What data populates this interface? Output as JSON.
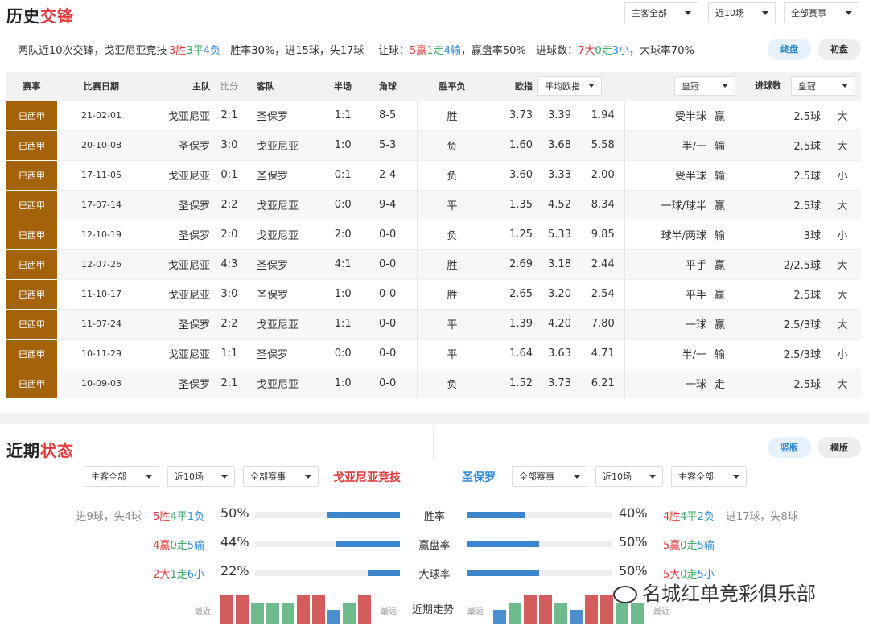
{
  "h2h": {
    "title_a": "历史",
    "title_b": "交锋",
    "filters": [
      "主客全部",
      "近10场",
      "全部赛事"
    ],
    "summary": {
      "prefix": "两队近10次交锋，戈亚尼亚竞技",
      "w": "3胜",
      "d": "3平",
      "l": "4负",
      "rate": "胜率30%，进15球，失17球",
      "hc_label": "让球：",
      "hc_w": "5赢",
      "hc_d": "1走",
      "hc_l": "4输",
      "hc_rate": "，赢盘率50%",
      "ou_label": "进球数：",
      "ou_o": "7大",
      "ou_d": "0走",
      "ou_u": "3小",
      "ou_rate": "，大球率70%"
    },
    "btn_final": "终盘",
    "btn_initial": "初盘",
    "headers": {
      "league": "赛事",
      "date": "比赛日期",
      "home": "主队",
      "score": "比分",
      "away": "客队",
      "half": "半场",
      "corner": "角球",
      "result": "胜平负",
      "odds": "欧指",
      "odds_select": "平均欧指",
      "hc": "让球",
      "hc_select": "皇冠",
      "goals": "进球数",
      "goals_select": "皇冠"
    },
    "rows": [
      {
        "league": "巴西甲",
        "date": "21-02-01",
        "home": "戈亚尼亚",
        "home_c": "red",
        "score": "2:1",
        "away": "圣保罗",
        "away_c": "",
        "half": "1:1",
        "corner": "8-5",
        "res": "胜",
        "res_c": "red",
        "o1": "3.73",
        "o2": "3.39",
        "o3": "1.94",
        "hc": "受半球",
        "hcr": "赢",
        "hcr_c": "red",
        "goals": "2.5球",
        "ou": "大",
        "ou_c": "red"
      },
      {
        "league": "巴西甲",
        "date": "20-10-08",
        "home": "圣保罗",
        "home_c": "",
        "score": "3:0",
        "away": "戈亚尼亚",
        "away_c": "blue",
        "half": "1:0",
        "corner": "5-3",
        "res": "负",
        "res_c": "blue",
        "o1": "1.60",
        "o2": "3.68",
        "o3": "5.58",
        "hc": "半/一",
        "hcr": "输",
        "hcr_c": "blue",
        "goals": "2.5球",
        "ou": "大",
        "ou_c": "red"
      },
      {
        "league": "巴西甲",
        "date": "17-11-05",
        "home": "戈亚尼亚",
        "home_c": "blue",
        "score": "0:1",
        "away": "圣保罗",
        "away_c": "",
        "half": "0:1",
        "corner": "2-4",
        "res": "负",
        "res_c": "blue",
        "o1": "3.60",
        "o2": "3.33",
        "o3": "2.00",
        "hc": "受半球",
        "hcr": "输",
        "hcr_c": "blue",
        "goals": "2.5球",
        "ou": "小",
        "ou_c": "blue"
      },
      {
        "league": "巴西甲",
        "date": "17-07-14",
        "home": "圣保罗",
        "home_c": "",
        "score": "2:2",
        "away": "戈亚尼亚",
        "away_c": "green",
        "half": "0:0",
        "corner": "9-4",
        "res": "平",
        "res_c": "green",
        "o1": "1.35",
        "o2": "4.52",
        "o3": "8.34",
        "hc": "一球/球半",
        "hcr": "赢",
        "hcr_c": "red",
        "goals": "2.5球",
        "ou": "大",
        "ou_c": "red"
      },
      {
        "league": "巴西甲",
        "date": "12-10-19",
        "home": "圣保罗",
        "home_c": "",
        "score": "2:0",
        "away": "戈亚尼亚",
        "away_c": "blue",
        "half": "2:0",
        "corner": "0-0",
        "res": "负",
        "res_c": "blue",
        "o1": "1.25",
        "o2": "5.33",
        "o3": "9.85",
        "hc": "球半/两球",
        "hcr": "输",
        "hcr_c": "blue",
        "goals": "3球",
        "ou": "小",
        "ou_c": "blue"
      },
      {
        "league": "巴西甲",
        "date": "12-07-26",
        "home": "戈亚尼亚",
        "home_c": "red",
        "score": "4:3",
        "away": "圣保罗",
        "away_c": "",
        "half": "4:1",
        "corner": "0-0",
        "res": "胜",
        "res_c": "red",
        "o1": "2.69",
        "o2": "3.18",
        "o3": "2.44",
        "hc": "平手",
        "hcr": "赢",
        "hcr_c": "red",
        "goals": "2/2.5球",
        "ou": "大",
        "ou_c": "red"
      },
      {
        "league": "巴西甲",
        "date": "11-10-17",
        "home": "戈亚尼亚",
        "home_c": "red",
        "score": "3:0",
        "away": "圣保罗",
        "away_c": "",
        "half": "1:0",
        "corner": "0-0",
        "res": "胜",
        "res_c": "red",
        "o1": "2.65",
        "o2": "3.20",
        "o3": "2.54",
        "hc": "平手",
        "hcr": "赢",
        "hcr_c": "red",
        "goals": "2.5球",
        "ou": "大",
        "ou_c": "red"
      },
      {
        "league": "巴西甲",
        "date": "11-07-24",
        "home": "圣保罗",
        "home_c": "",
        "score": "2:2",
        "away": "戈亚尼亚",
        "away_c": "green",
        "half": "1:1",
        "corner": "0-0",
        "res": "平",
        "res_c": "green",
        "o1": "1.39",
        "o2": "4.20",
        "o3": "7.80",
        "hc": "一球",
        "hcr": "赢",
        "hcr_c": "red",
        "goals": "2.5/3球",
        "ou": "大",
        "ou_c": "red"
      },
      {
        "league": "巴西甲",
        "date": "10-11-29",
        "home": "戈亚尼亚",
        "home_c": "green",
        "score": "1:1",
        "away": "圣保罗",
        "away_c": "",
        "half": "0:0",
        "corner": "0-0",
        "res": "平",
        "res_c": "green",
        "o1": "1.64",
        "o2": "3.63",
        "o3": "4.71",
        "hc": "半/一",
        "hcr": "输",
        "hcr_c": "blue",
        "goals": "2.5/3球",
        "ou": "小",
        "ou_c": "blue"
      },
      {
        "league": "巴西甲",
        "date": "10-09-03",
        "home": "圣保罗",
        "home_c": "",
        "score": "2:1",
        "away": "戈亚尼亚",
        "away_c": "blue",
        "half": "1:0",
        "corner": "0-0",
        "res": "负",
        "res_c": "blue",
        "o1": "1.52",
        "o2": "3.73",
        "o3": "6.21",
        "hc": "一球",
        "hcr": "走",
        "hcr_c": "green",
        "goals": "2.5球",
        "ou": "大",
        "ou_c": "red"
      }
    ]
  },
  "recent": {
    "title_a": "近期",
    "title_b": "状态",
    "btn_vertical": "竖版",
    "btn_horizontal": "横版",
    "left_filters": [
      "主客全部",
      "近10场",
      "全部赛事"
    ],
    "right_filters": [
      "全部赛事",
      "近10场",
      "主客全部"
    ],
    "team_left": "戈亚尼亚竞技",
    "team_right": "圣保罗",
    "stats": [
      {
        "label": "胜率",
        "left_extra": "进9球，失4球",
        "left_w": "5胜",
        "left_d": "4平",
        "left_l": "1负",
        "left_pct": "50%",
        "left_val": 0.5,
        "right_pct": "40%",
        "right_val": 0.4,
        "right_w": "4胜",
        "right_d": "4平",
        "right_l": "2负",
        "right_extra": "进17球，失8球"
      },
      {
        "label": "赢盘率",
        "left_extra": "",
        "left_w": "4赢",
        "left_d": "0走",
        "left_l": "5输",
        "left_pct": "44%",
        "left_val": 0.44,
        "right_pct": "50%",
        "right_val": 0.5,
        "right_w": "5赢",
        "right_d": "0走",
        "right_l": "5输",
        "right_extra": ""
      },
      {
        "label": "大球率",
        "left_extra": "",
        "left_w": "2大",
        "left_d": "1走",
        "left_l": "6小",
        "left_pct": "22%",
        "left_val": 0.22,
        "right_pct": "50%",
        "right_val": 0.5,
        "right_w": "5大",
        "right_d": "0走",
        "right_l": "5小",
        "right_extra": ""
      }
    ],
    "trend_label": "近期走势",
    "recent_label": "最近",
    "far_label": "最远",
    "left_trend": [
      "W",
      "W",
      "D",
      "D",
      "D",
      "W",
      "W",
      "L",
      "D",
      "W"
    ],
    "right_trend": [
      "L",
      "D",
      "W",
      "W",
      "D",
      "L",
      "W",
      "W",
      "D",
      "D"
    ]
  },
  "watermark": "名城红单竞彩俱乐部",
  "colors": {
    "accent_red": "#e23b3b",
    "accent_blue": "#2e8bd6",
    "accent_green": "#2fa85f",
    "league_bg": "#a4620b"
  }
}
